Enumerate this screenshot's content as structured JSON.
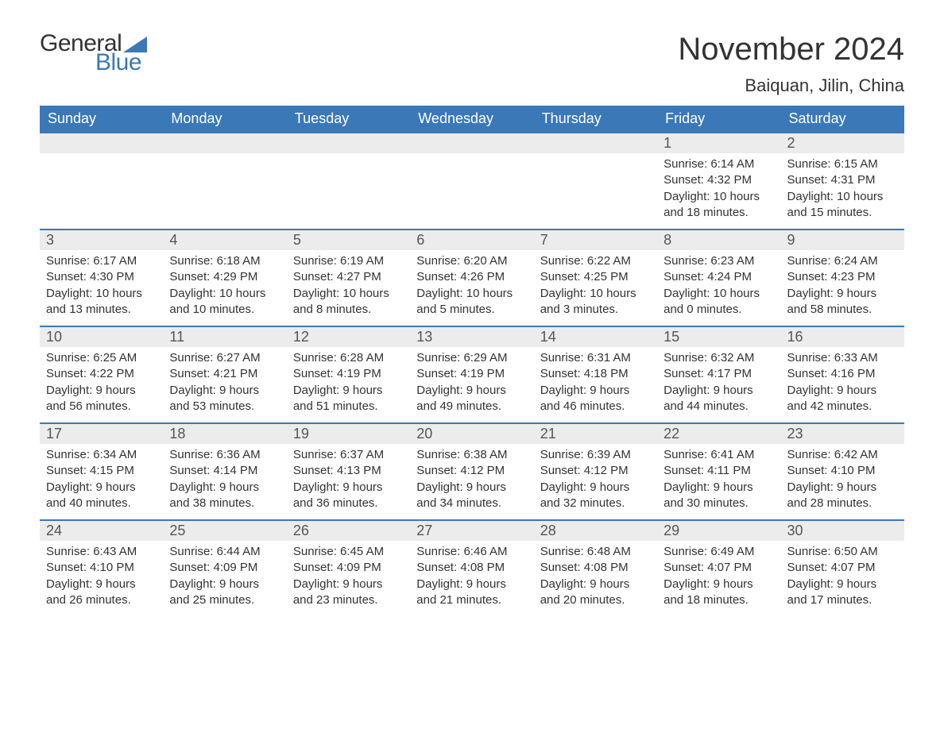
{
  "brand": {
    "word1": "General",
    "word2": "Blue"
  },
  "title": "November 2024",
  "location": "Baiquan, Jilin, China",
  "colors": {
    "header_bg": "#3b78b8",
    "header_text": "#ffffff",
    "daynum_bg": "#ececec",
    "daynum_border": "#3b78b8",
    "body_text": "#333333",
    "logo_blue": "#3b78b8",
    "logo_gray": "#333333",
    "page_bg": "#ffffff"
  },
  "fonts": {
    "title_size_pt": 30,
    "location_size_pt": 16,
    "header_size_pt": 14,
    "daynum_size_pt": 14,
    "body_size_pt": 11,
    "family": "Arial"
  },
  "layout": {
    "type": "calendar",
    "columns": 7,
    "rows": 5,
    "first_day_column_index": 5
  },
  "weekdays": [
    "Sunday",
    "Monday",
    "Tuesday",
    "Wednesday",
    "Thursday",
    "Friday",
    "Saturday"
  ],
  "days": [
    {
      "n": 1,
      "sunrise": "6:14 AM",
      "sunset": "4:32 PM",
      "dl": "10 hours and 18 minutes."
    },
    {
      "n": 2,
      "sunrise": "6:15 AM",
      "sunset": "4:31 PM",
      "dl": "10 hours and 15 minutes."
    },
    {
      "n": 3,
      "sunrise": "6:17 AM",
      "sunset": "4:30 PM",
      "dl": "10 hours and 13 minutes."
    },
    {
      "n": 4,
      "sunrise": "6:18 AM",
      "sunset": "4:29 PM",
      "dl": "10 hours and 10 minutes."
    },
    {
      "n": 5,
      "sunrise": "6:19 AM",
      "sunset": "4:27 PM",
      "dl": "10 hours and 8 minutes."
    },
    {
      "n": 6,
      "sunrise": "6:20 AM",
      "sunset": "4:26 PM",
      "dl": "10 hours and 5 minutes."
    },
    {
      "n": 7,
      "sunrise": "6:22 AM",
      "sunset": "4:25 PM",
      "dl": "10 hours and 3 minutes."
    },
    {
      "n": 8,
      "sunrise": "6:23 AM",
      "sunset": "4:24 PM",
      "dl": "10 hours and 0 minutes."
    },
    {
      "n": 9,
      "sunrise": "6:24 AM",
      "sunset": "4:23 PM",
      "dl": "9 hours and 58 minutes."
    },
    {
      "n": 10,
      "sunrise": "6:25 AM",
      "sunset": "4:22 PM",
      "dl": "9 hours and 56 minutes."
    },
    {
      "n": 11,
      "sunrise": "6:27 AM",
      "sunset": "4:21 PM",
      "dl": "9 hours and 53 minutes."
    },
    {
      "n": 12,
      "sunrise": "6:28 AM",
      "sunset": "4:19 PM",
      "dl": "9 hours and 51 minutes."
    },
    {
      "n": 13,
      "sunrise": "6:29 AM",
      "sunset": "4:19 PM",
      "dl": "9 hours and 49 minutes."
    },
    {
      "n": 14,
      "sunrise": "6:31 AM",
      "sunset": "4:18 PM",
      "dl": "9 hours and 46 minutes."
    },
    {
      "n": 15,
      "sunrise": "6:32 AM",
      "sunset": "4:17 PM",
      "dl": "9 hours and 44 minutes."
    },
    {
      "n": 16,
      "sunrise": "6:33 AM",
      "sunset": "4:16 PM",
      "dl": "9 hours and 42 minutes."
    },
    {
      "n": 17,
      "sunrise": "6:34 AM",
      "sunset": "4:15 PM",
      "dl": "9 hours and 40 minutes."
    },
    {
      "n": 18,
      "sunrise": "6:36 AM",
      "sunset": "4:14 PM",
      "dl": "9 hours and 38 minutes."
    },
    {
      "n": 19,
      "sunrise": "6:37 AM",
      "sunset": "4:13 PM",
      "dl": "9 hours and 36 minutes."
    },
    {
      "n": 20,
      "sunrise": "6:38 AM",
      "sunset": "4:12 PM",
      "dl": "9 hours and 34 minutes."
    },
    {
      "n": 21,
      "sunrise": "6:39 AM",
      "sunset": "4:12 PM",
      "dl": "9 hours and 32 minutes."
    },
    {
      "n": 22,
      "sunrise": "6:41 AM",
      "sunset": "4:11 PM",
      "dl": "9 hours and 30 minutes."
    },
    {
      "n": 23,
      "sunrise": "6:42 AM",
      "sunset": "4:10 PM",
      "dl": "9 hours and 28 minutes."
    },
    {
      "n": 24,
      "sunrise": "6:43 AM",
      "sunset": "4:10 PM",
      "dl": "9 hours and 26 minutes."
    },
    {
      "n": 25,
      "sunrise": "6:44 AM",
      "sunset": "4:09 PM",
      "dl": "9 hours and 25 minutes."
    },
    {
      "n": 26,
      "sunrise": "6:45 AM",
      "sunset": "4:09 PM",
      "dl": "9 hours and 23 minutes."
    },
    {
      "n": 27,
      "sunrise": "6:46 AM",
      "sunset": "4:08 PM",
      "dl": "9 hours and 21 minutes."
    },
    {
      "n": 28,
      "sunrise": "6:48 AM",
      "sunset": "4:08 PM",
      "dl": "9 hours and 20 minutes."
    },
    {
      "n": 29,
      "sunrise": "6:49 AM",
      "sunset": "4:07 PM",
      "dl": "9 hours and 18 minutes."
    },
    {
      "n": 30,
      "sunrise": "6:50 AM",
      "sunset": "4:07 PM",
      "dl": "9 hours and 17 minutes."
    }
  ],
  "labels": {
    "sunrise_prefix": "Sunrise: ",
    "sunset_prefix": "Sunset: ",
    "daylight_prefix": "Daylight: "
  }
}
